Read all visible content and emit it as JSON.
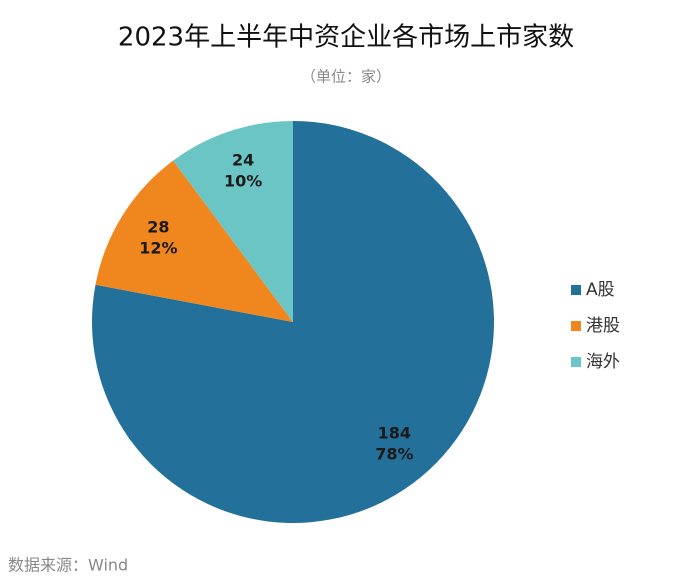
{
  "chart_data": {
    "type": "pie",
    "title": "2023年上半年中资企业各市场上市家数",
    "subtitle": "（单位：家）",
    "source": "数据来源：Wind",
    "categories": [
      "A股",
      "港股",
      "海外"
    ],
    "values": [
      184,
      28,
      24
    ],
    "percent_labels": [
      "78%",
      "12%",
      "10%"
    ],
    "colors": [
      "#23709a",
      "#f0861e",
      "#6cc5c5"
    ],
    "legend": "right"
  }
}
